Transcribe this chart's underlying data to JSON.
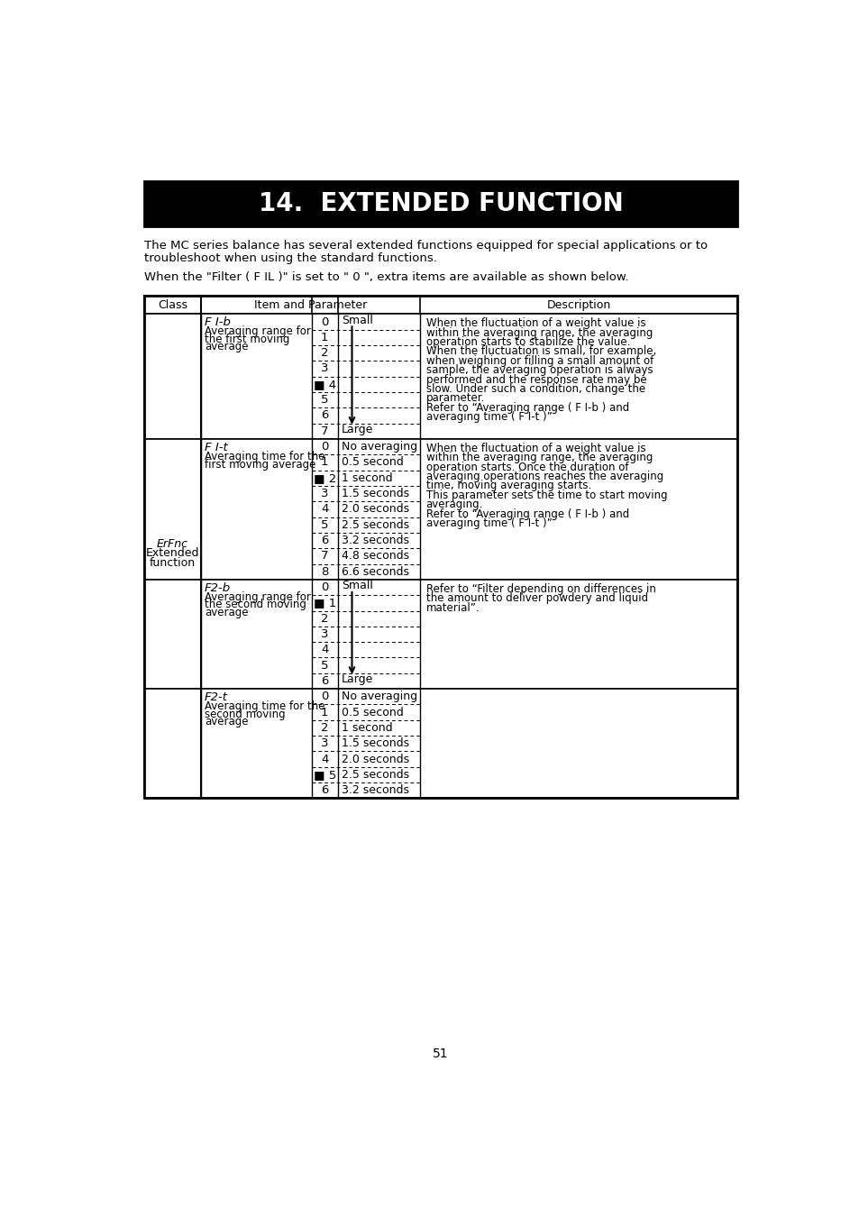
{
  "title": "14.  EXTENDED FUNCTION",
  "page_number": "51",
  "intro_line1": "The MC series balance has several extended functions equipped for special applications or to",
  "intro_line2": "troubleshoot when using the standard functions.",
  "intro_line3": "When the \"Filter ( F IL )\" is set to \" 0 \", extra items are available as shown below.",
  "header_class": "Class",
  "header_item": "Item and Parameter",
  "header_desc": "Description",
  "class_label_line1": "ErFnc",
  "class_label_line2": "Extended",
  "class_label_line3": "function",
  "s1_name": "F I-b",
  "s1_desc1": "Averaging range for",
  "s1_desc2": "the first moving",
  "s1_desc3": "average",
  "s1_values": [
    "0",
    "1",
    "2",
    "3",
    "■ 4",
    "5",
    "6",
    "7"
  ],
  "s1_small_row": 0,
  "s1_large_row": 7,
  "s1_default_row": 4,
  "s1_description": [
    "When the fluctuation of a weight value is",
    "within the averaging range, the averaging",
    "operation starts to stabilize the value.",
    "When the fluctuation is small, for example,",
    "when weighing or filling a small amount of",
    "sample, the averaging operation is always",
    "performed and the response rate may be",
    "slow. Under such a condition, change the",
    "parameter.",
    "Refer to “Averaging range ( F I-b ) and",
    "averaging time ( F I-t )”"
  ],
  "s2_name": "F I-t",
  "s2_desc1": "Averaging time for the",
  "s2_desc2": "first moving average",
  "s2_values": [
    "0",
    "1",
    "■ 2",
    "3",
    "4",
    "5",
    "6",
    "7",
    "8"
  ],
  "s2_params": [
    "No averaging",
    "0.5 second",
    "1 second",
    "1.5 seconds",
    "2.0 seconds",
    "2.5 seconds",
    "3.2 seconds",
    "4.8 seconds",
    "6.6 seconds"
  ],
  "s2_description": [
    "When the fluctuation of a weight value is",
    "within the averaging range, the averaging",
    "operation starts. Once the duration of",
    "averaging operations reaches the averaging",
    "time, moving averaging starts.",
    "This parameter sets the time to start moving",
    "averaging.",
    "Refer to “Averaging range ( F I-b ) and",
    "averaging time ( F I-t )”"
  ],
  "s3_name": "F2-b",
  "s3_desc1": "Averaging range for",
  "s3_desc2": "the second moving",
  "s3_desc3": "average",
  "s3_values": [
    "0",
    "■ 1",
    "2",
    "3",
    "4",
    "5",
    "6"
  ],
  "s3_small_row": 0,
  "s3_large_row": 6,
  "s3_description": [
    "Refer to “Filter depending on differences in",
    "the amount to deliver powdery and liquid",
    "material”."
  ],
  "s4_name": "F2-t",
  "s4_desc1": "Averaging time for the",
  "s4_desc2": "second moving",
  "s4_desc3": "average",
  "s4_values": [
    "0",
    "1",
    "2",
    "3",
    "4",
    "■ 5",
    "6"
  ],
  "s4_params": [
    "No averaging",
    "0.5 second",
    "1 second",
    "1.5 seconds",
    "2.0 seconds",
    "2.5 seconds",
    "3.2 seconds"
  ],
  "s4_description": []
}
